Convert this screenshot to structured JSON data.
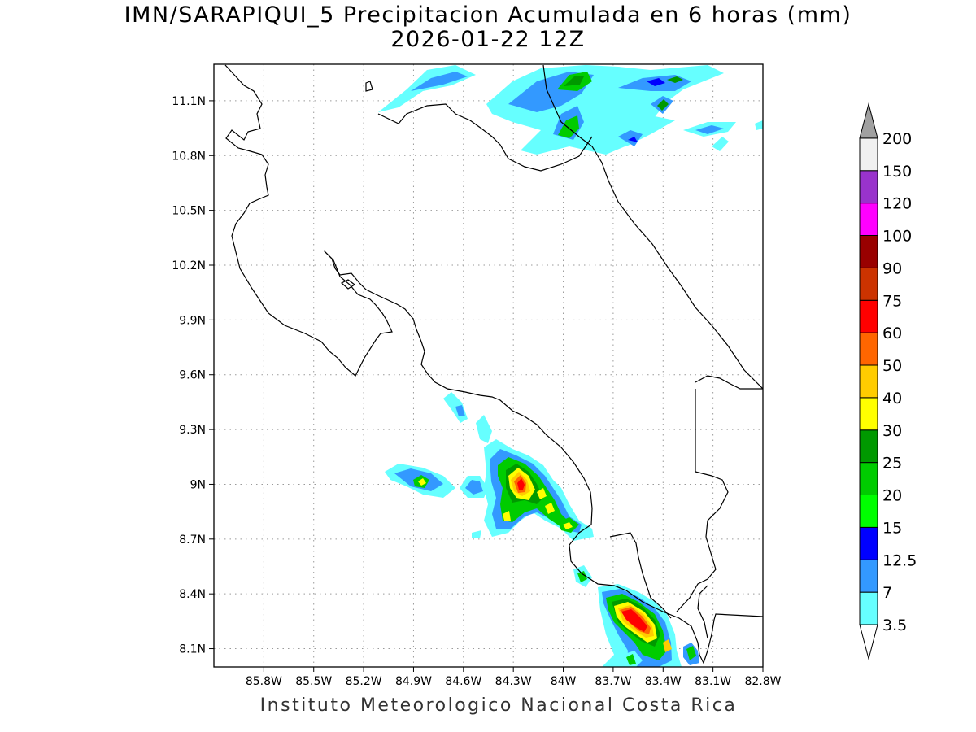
{
  "title": {
    "line1": "IMN/SARAPIQUI_5 Precipitacion Acumulada en 6 horas (mm)",
    "line2": "2026-01-22 12Z"
  },
  "footer": "Instituto Meteorologico Nacional Costa Rica",
  "map": {
    "lon_range": [
      -86.1,
      -82.8
    ],
    "lat_range": [
      8.0,
      11.3
    ],
    "lon_ticks": [
      {
        "value": -85.8,
        "label": "85.8W"
      },
      {
        "value": -85.5,
        "label": "85.5W"
      },
      {
        "value": -85.2,
        "label": "85.2W"
      },
      {
        "value": -84.9,
        "label": "84.9W"
      },
      {
        "value": -84.6,
        "label": "84.6W"
      },
      {
        "value": -84.3,
        "label": "84.3W"
      },
      {
        "value": -84.0,
        "label": "84W"
      },
      {
        "value": -83.7,
        "label": "83.7W"
      },
      {
        "value": -83.4,
        "label": "83.4W"
      },
      {
        "value": -83.1,
        "label": "83.1W"
      },
      {
        "value": -82.8,
        "label": "82.8W"
      }
    ],
    "lat_ticks": [
      {
        "value": 11.1,
        "label": "11.1N"
      },
      {
        "value": 10.8,
        "label": "10.8N"
      },
      {
        "value": 10.5,
        "label": "10.5N"
      },
      {
        "value": 10.2,
        "label": "10.2N"
      },
      {
        "value": 9.9,
        "label": "9.9N"
      },
      {
        "value": 9.6,
        "label": "9.6N"
      },
      {
        "value": 9.3,
        "label": "9.3N"
      },
      {
        "value": 9.0,
        "label": "9N"
      },
      {
        "value": 8.7,
        "label": "8.7N"
      },
      {
        "value": 8.4,
        "label": "8.4N"
      },
      {
        "value": 8.1,
        "label": "8.1N"
      }
    ],
    "grid": "dotted"
  },
  "colorbar": {
    "levels": [
      {
        "label": "3.5",
        "color": "#66ffff"
      },
      {
        "label": "7",
        "color": "#3399ff"
      },
      {
        "label": "12.5",
        "color": "#0000ff"
      },
      {
        "label": "15",
        "color": "#00ff00"
      },
      {
        "label": "20",
        "color": "#00cc00"
      },
      {
        "label": "25",
        "color": "#009900"
      },
      {
        "label": "30",
        "color": "#ffff00"
      },
      {
        "label": "40",
        "color": "#ffcc00"
      },
      {
        "label": "50",
        "color": "#ff6600"
      },
      {
        "label": "60",
        "color": "#ff0000"
      },
      {
        "label": "75",
        "color": "#cc3300"
      },
      {
        "label": "90",
        "color": "#990000"
      },
      {
        "label": "100",
        "color": "#ff00ff"
      },
      {
        "label": "120",
        "color": "#9933cc"
      },
      {
        "label": "150",
        "color": "#f0f0f0"
      },
      {
        "label": "200",
        "color": "#a0a0a0"
      }
    ],
    "under_color": "#ffffff"
  }
}
